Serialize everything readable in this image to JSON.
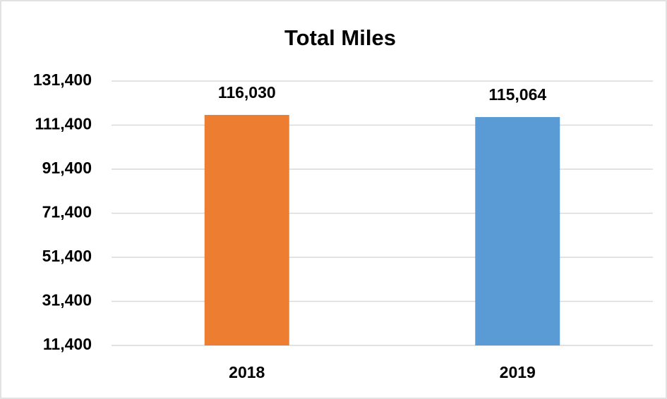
{
  "chart_data": {
    "type": "bar",
    "title": "Total Miles",
    "categories": [
      "2018",
      "2019"
    ],
    "values": [
      116030,
      115064
    ],
    "value_labels": [
      "116,030",
      "115,064"
    ],
    "colors": [
      "#ed7d31",
      "#5b9bd5"
    ],
    "ylim": [
      11400,
      131400
    ],
    "yticks": [
      {
        "value": 11400,
        "label": "11,400"
      },
      {
        "value": 31400,
        "label": "31,400"
      },
      {
        "value": 51400,
        "label": "51,400"
      },
      {
        "value": 71400,
        "label": "71,400"
      },
      {
        "value": 91400,
        "label": "91,400"
      },
      {
        "value": 111400,
        "label": "111,400"
      },
      {
        "value": 131400,
        "label": "131,400"
      }
    ],
    "grid": true
  }
}
